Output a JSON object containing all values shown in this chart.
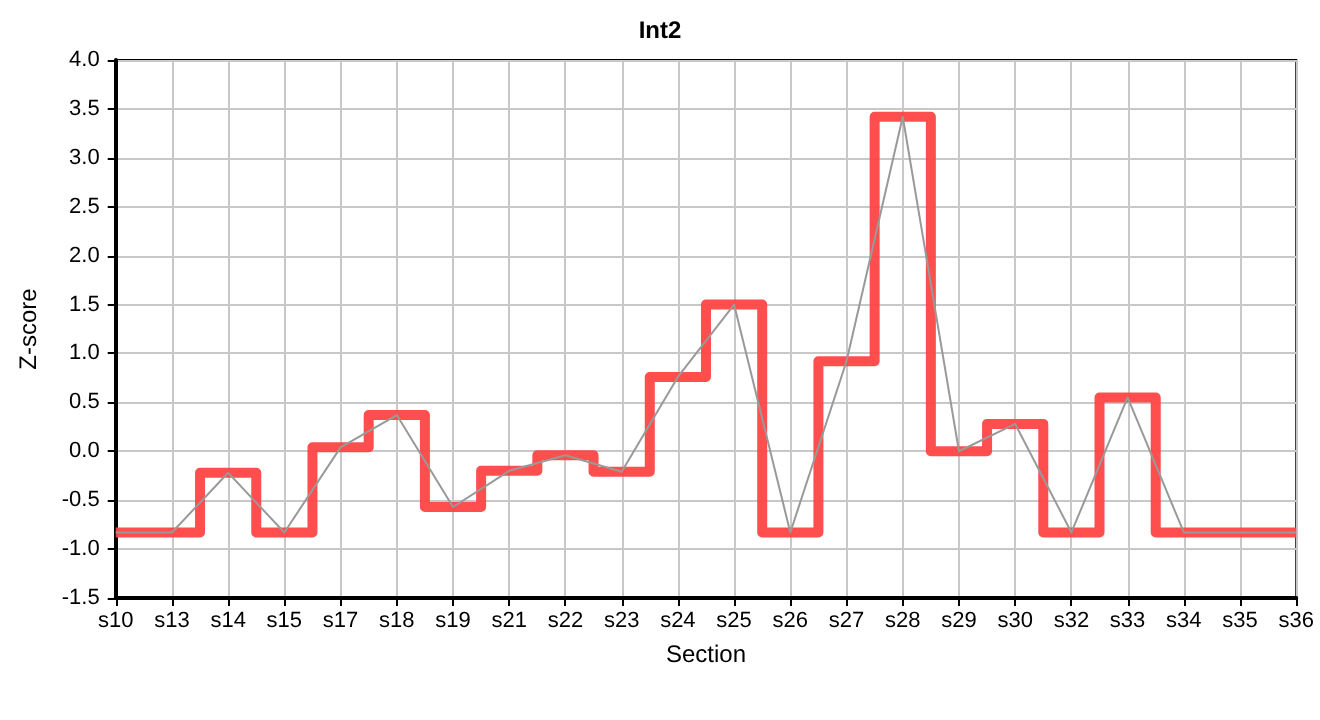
{
  "chart_data": {
    "type": "line",
    "title": "Int2",
    "xlabel": "Section",
    "ylabel": "Z-score",
    "categories": [
      "s10",
      "s13",
      "s14",
      "s15",
      "s17",
      "s18",
      "s19",
      "s21",
      "s22",
      "s23",
      "s24",
      "s25",
      "s26",
      "s27",
      "s28",
      "s29",
      "s30",
      "s32",
      "s33",
      "s34",
      "s35",
      "s36"
    ],
    "series": [
      {
        "color": "#999999",
        "values": [
          -0.83,
          -0.83,
          -0.22,
          -0.83,
          0.04,
          0.37,
          -0.57,
          -0.2,
          -0.04,
          -0.21,
          0.76,
          1.5,
          -0.83,
          0.92,
          3.42,
          0.0,
          0.28,
          -0.83,
          0.55,
          -0.83,
          -0.83,
          -0.83
        ]
      },
      {
        "type": "step",
        "color": "#ff4444",
        "values": [
          -0.83,
          -0.83,
          -0.22,
          -0.83,
          0.04,
          0.37,
          -0.57,
          -0.2,
          -0.04,
          -0.21,
          0.76,
          1.5,
          -0.83,
          0.92,
          3.42,
          0.0,
          0.28,
          -0.83,
          0.55,
          -0.83,
          -0.83,
          -0.83
        ]
      }
    ],
    "ylim": [
      -1.5,
      4.0
    ],
    "yticks": [
      {
        "value": -1.5,
        "label": "-1.5"
      },
      {
        "value": -1,
        "label": "-1.0"
      },
      {
        "value": -0.5,
        "label": "-0.5"
      },
      {
        "value": 0,
        "label": "0.0"
      },
      {
        "value": 0.5,
        "label": "0.5"
      },
      {
        "value": 1,
        "label": "1.0"
      },
      {
        "value": 1.5,
        "label": "1.5"
      },
      {
        "value": 2,
        "label": "2.0"
      },
      {
        "value": 2.5,
        "label": "2.5"
      },
      {
        "value": 3,
        "label": "3.0"
      },
      {
        "value": 3.5,
        "label": "3.5"
      },
      {
        "value": 4,
        "label": "4.0"
      }
    ],
    "grid": true,
    "marker": "none"
  }
}
